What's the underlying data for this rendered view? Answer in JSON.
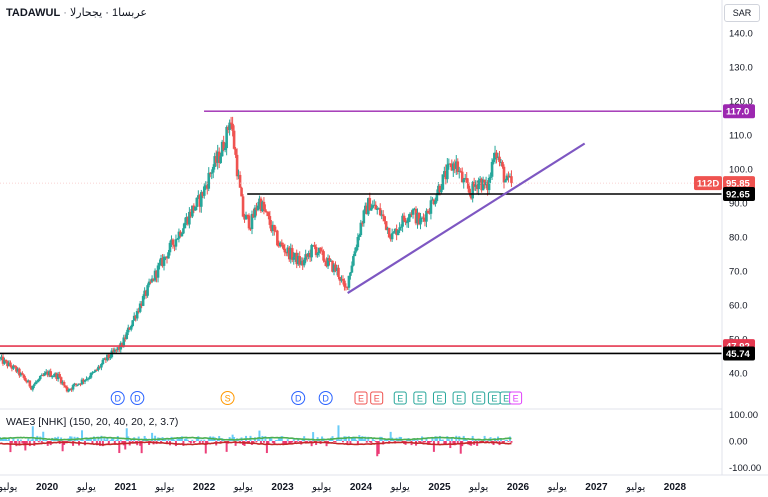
{
  "header": {
    "symbol": "TADAWUL",
    "separator": "·",
    "description": "عربسا1 · يجحارلا"
  },
  "currency_badge": "SAR",
  "indicator": {
    "label": "WAE3 [NHK] (150, 20, 40, 20, 2, 3.7)",
    "y_ticks": [
      "100.00",
      "0.00",
      "-100.00"
    ]
  },
  "price_labels": {
    "top_line": "117.0",
    "countdown": "112D",
    "last_price": "95.85",
    "mid_line": "92.65",
    "upper_support": "47.92",
    "lower_support": "45.74"
  },
  "colors": {
    "up": "#26a69a",
    "down": "#ef5350",
    "resistance": "#9c27b0",
    "trendline": "#7e57c2",
    "support_red": "#e53950",
    "level_black": "#000000",
    "signal_green": "#4caf50",
    "signal_red": "#c62828",
    "hist_pink": "#e91e63",
    "hist_cyan": "#4fc3f7"
  },
  "event_markers": [
    {
      "letter": "D",
      "year": 2020.9,
      "kind": "dividend"
    },
    {
      "letter": "D",
      "year": 2021.15,
      "kind": "dividend"
    },
    {
      "letter": "S",
      "year": 2022.3,
      "kind": "split"
    },
    {
      "letter": "D",
      "year": 2023.2,
      "kind": "dividend"
    },
    {
      "letter": "D",
      "year": 2023.55,
      "kind": "dividend"
    },
    {
      "letter": "E",
      "year": 2024.0,
      "kind": "earnings"
    },
    {
      "letter": "E",
      "year": 2024.2,
      "kind": "earnings"
    },
    {
      "letter": "E",
      "year": 2024.5,
      "kind": "earnings"
    },
    {
      "letter": "E",
      "year": 2024.75,
      "kind": "earnings"
    },
    {
      "letter": "E",
      "year": 2025.0,
      "kind": "earnings"
    },
    {
      "letter": "E",
      "year": 2025.25,
      "kind": "earnings"
    },
    {
      "letter": "E",
      "year": 2025.5,
      "kind": "earnings"
    },
    {
      "letter": "E",
      "year": 2025.7,
      "kind": "earnings"
    },
    {
      "letter": "E",
      "year": 2025.85,
      "kind": "earnings"
    },
    {
      "letter": "E",
      "year": 2025.97,
      "kind": "earnings-upcoming"
    }
  ],
  "chart_data": {
    "type": "candlestick",
    "title": "",
    "y_axis": {
      "ticks": [
        40,
        50,
        60,
        70,
        80,
        90,
        100,
        110,
        120,
        130,
        140
      ],
      "range": [
        35,
        145
      ],
      "scale": "linear",
      "side": "right"
    },
    "x_axis": {
      "range_years": [
        2019.4,
        2028.6
      ],
      "labels": [
        {
          "text": "يوليو",
          "year": 2019.5
        },
        {
          "text": "2020",
          "year": 2020.0
        },
        {
          "text": "يوليو",
          "year": 2020.5
        },
        {
          "text": "2021",
          "year": 2021.0
        },
        {
          "text": "يوليو",
          "year": 2021.5
        },
        {
          "text": "2022",
          "year": 2022.0
        },
        {
          "text": "يوليو",
          "year": 2022.5
        },
        {
          "text": "2023",
          "year": 2023.0
        },
        {
          "text": "يوليو",
          "year": 2023.5
        },
        {
          "text": "2024",
          "year": 2024.0
        },
        {
          "text": "يوليو",
          "year": 2024.5
        },
        {
          "text": "2025",
          "year": 2025.0
        },
        {
          "text": "يوليو",
          "year": 2025.5
        },
        {
          "text": "2026",
          "year": 2026.0
        },
        {
          "text": "يوليو",
          "year": 2026.5
        },
        {
          "text": "2027",
          "year": 2027.0
        },
        {
          "text": "يوليو",
          "year": 2027.5
        },
        {
          "text": "2028",
          "year": 2028.0
        }
      ]
    },
    "grid": false,
    "price_path": [
      [
        2019.4,
        44
      ],
      [
        2019.6,
        41
      ],
      [
        2019.8,
        36
      ],
      [
        2020.0,
        40
      ],
      [
        2020.15,
        39
      ],
      [
        2020.25,
        35
      ],
      [
        2020.4,
        37
      ],
      [
        2020.6,
        40
      ],
      [
        2020.75,
        44
      ],
      [
        2020.95,
        48
      ],
      [
        2021.1,
        56
      ],
      [
        2021.25,
        63
      ],
      [
        2021.4,
        70
      ],
      [
        2021.55,
        76
      ],
      [
        2021.7,
        82
      ],
      [
        2021.85,
        88
      ],
      [
        2021.95,
        91
      ],
      [
        2022.1,
        100
      ],
      [
        2022.2,
        104
      ],
      [
        2022.3,
        111
      ],
      [
        2022.33,
        116
      ],
      [
        2022.4,
        104
      ],
      [
        2022.5,
        86
      ],
      [
        2022.6,
        84
      ],
      [
        2022.7,
        91
      ],
      [
        2022.8,
        86
      ],
      [
        2022.95,
        78
      ],
      [
        2023.1,
        75
      ],
      [
        2023.25,
        72
      ],
      [
        2023.4,
        77
      ],
      [
        2023.55,
        73
      ],
      [
        2023.7,
        70
      ],
      [
        2023.8,
        64
      ],
      [
        2023.9,
        74
      ],
      [
        2024.0,
        84
      ],
      [
        2024.1,
        90
      ],
      [
        2024.25,
        87
      ],
      [
        2024.4,
        80
      ],
      [
        2024.5,
        84
      ],
      [
        2024.65,
        88
      ],
      [
        2024.75,
        84
      ],
      [
        2024.9,
        90
      ],
      [
        2025.0,
        95
      ],
      [
        2025.1,
        99
      ],
      [
        2025.2,
        102
      ],
      [
        2025.3,
        96
      ],
      [
        2025.4,
        93
      ],
      [
        2025.5,
        97
      ],
      [
        2025.6,
        94
      ],
      [
        2025.65,
        98
      ],
      [
        2025.7,
        107
      ],
      [
        2025.75,
        103
      ],
      [
        2025.85,
        96
      ],
      [
        2025.92,
        95.85
      ]
    ],
    "horizontal_lines": [
      {
        "price": 117.0,
        "from_year": 2022.0,
        "color": "resistance"
      },
      {
        "price": 92.65,
        "from_year": 2022.55,
        "color": "level_black"
      },
      {
        "price": 47.92,
        "from_year": 2019.4,
        "color": "support_red"
      },
      {
        "price": 45.74,
        "from_year": 2019.4,
        "color": "level_black"
      }
    ],
    "trendline": {
      "from": [
        2023.83,
        63.5
      ],
      "to": [
        2026.85,
        107.5
      ],
      "color": "trendline"
    },
    "last_price": 95.85,
    "indicator": {
      "range": [
        -110,
        110
      ],
      "zero": 0
    }
  }
}
